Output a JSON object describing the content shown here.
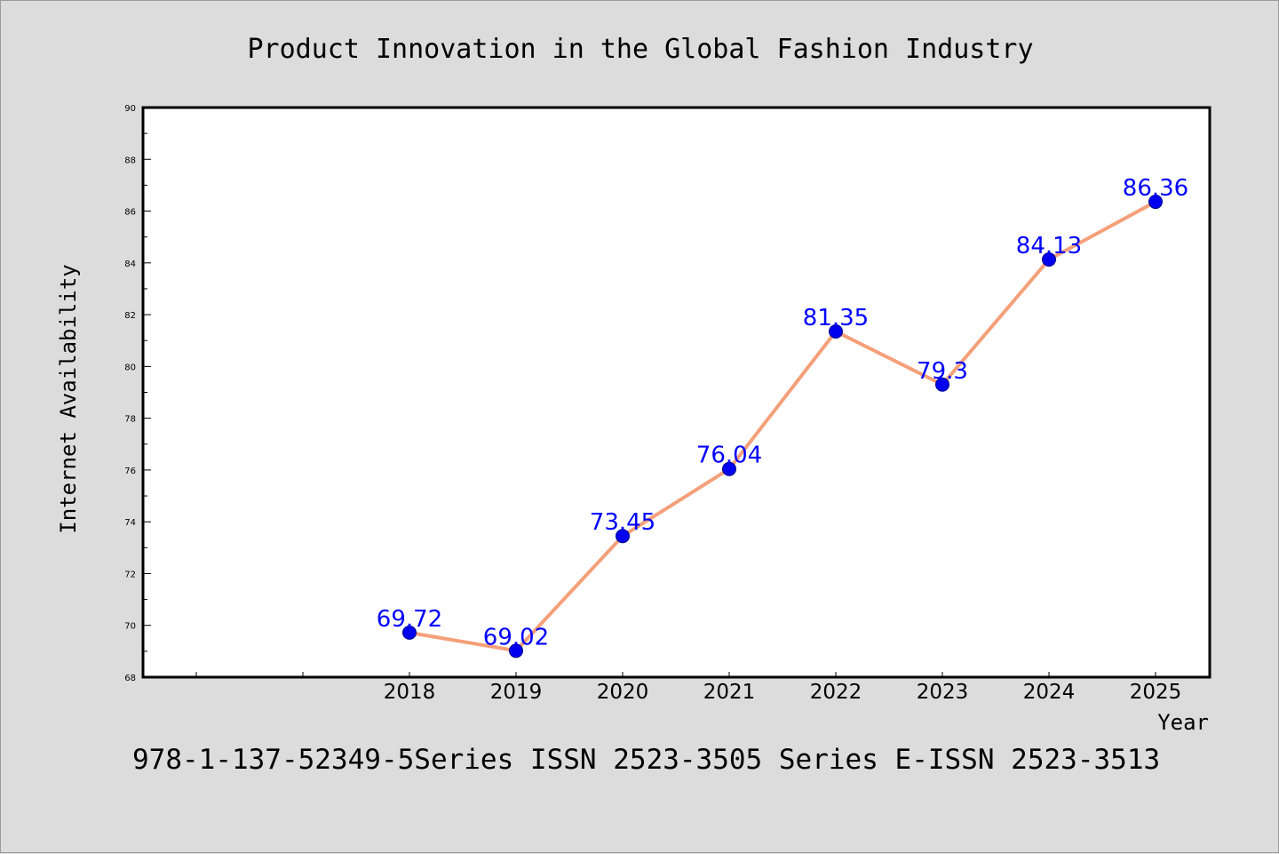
{
  "chart_data": {
    "type": "line",
    "title": "Product Innovation in the Global Fashion Industry",
    "xlabel": "Year",
    "ylabel": "Internet Availability",
    "categories": [
      "2018",
      "2019",
      "2020",
      "2021",
      "2022",
      "2023",
      "2024",
      "2025"
    ],
    "values": [
      69.72,
      69.02,
      73.45,
      76.04,
      81.35,
      79.3,
      84.13,
      86.36
    ],
    "data_labels": [
      "69.72",
      "69.02",
      "73.45",
      "76.04",
      "81.35",
      "79.3",
      "84.13",
      "86.36"
    ],
    "ylim": [
      68,
      90
    ],
    "yticks": [
      "68",
      "70",
      "72",
      "74",
      "76",
      "78",
      "80",
      "82",
      "84",
      "86",
      "88",
      "90"
    ],
    "grid": false,
    "line_color": "#f4a07a",
    "marker_color": "#0000ee",
    "label_color": "#0000ff"
  },
  "footer": {
    "text": "978-1-137-52349-5Series ISSN 2523-3505 Series E-ISSN 2523-3513"
  }
}
